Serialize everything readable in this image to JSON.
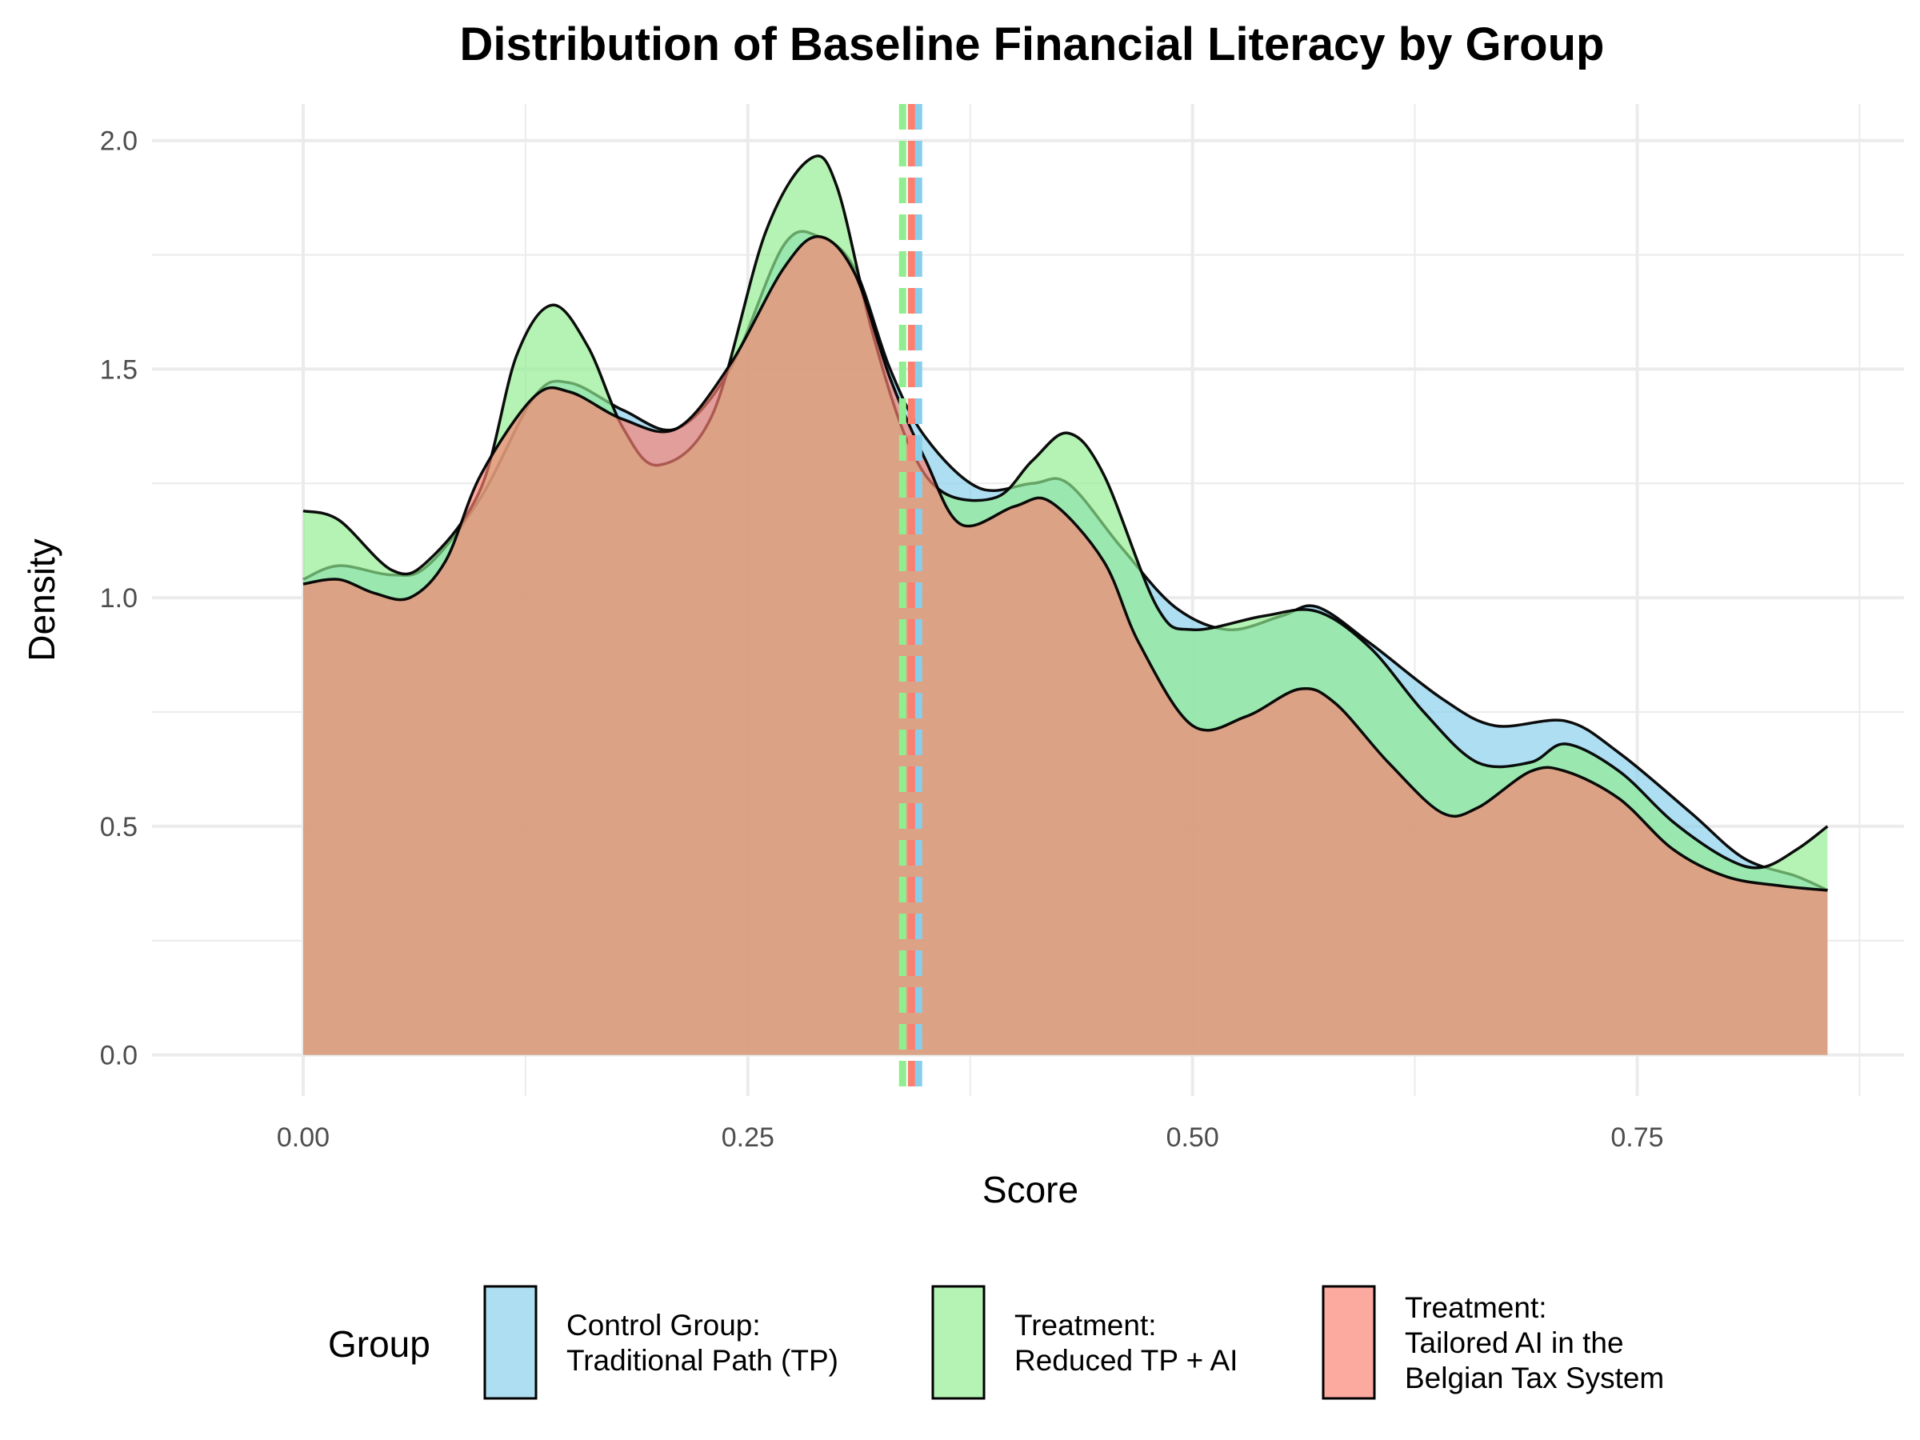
{
  "chart_data": {
    "type": "area",
    "title": "Distribution of Baseline Financial Literacy by Group",
    "xlabel": "Score",
    "ylabel": "Density",
    "xlim": [
      -0.085,
      0.9
    ],
    "ylim": [
      -0.09,
      2.08
    ],
    "x_ticks": [
      {
        "value": 0.0,
        "label": "0.00"
      },
      {
        "value": 0.25,
        "label": "0.25"
      },
      {
        "value": 0.5,
        "label": "0.50"
      },
      {
        "value": 0.75,
        "label": "0.75"
      }
    ],
    "y_ticks": [
      {
        "value": 0.0,
        "label": "0.0"
      },
      {
        "value": 0.5,
        "label": "0.5"
      },
      {
        "value": 1.0,
        "label": "1.0"
      },
      {
        "value": 1.5,
        "label": "1.5"
      },
      {
        "value": 2.0,
        "label": "2.0"
      }
    ],
    "grid": true,
    "legend": {
      "title": "Group",
      "placement": "bottom"
    },
    "series": [
      {
        "name": "Control Group: Traditional Path (TP)",
        "label_lines": [
          "Control Group:",
          "Traditional Path (TP)"
        ],
        "color": "#87CEEB",
        "mean": 0.346,
        "points": [
          [
            0.0,
            1.04
          ],
          [
            0.02,
            1.07
          ],
          [
            0.05,
            1.05
          ],
          [
            0.07,
            1.07
          ],
          [
            0.1,
            1.22
          ],
          [
            0.13,
            1.44
          ],
          [
            0.15,
            1.47
          ],
          [
            0.18,
            1.41
          ],
          [
            0.21,
            1.37
          ],
          [
            0.24,
            1.5
          ],
          [
            0.27,
            1.77
          ],
          [
            0.29,
            1.79
          ],
          [
            0.31,
            1.72
          ],
          [
            0.33,
            1.5
          ],
          [
            0.35,
            1.35
          ],
          [
            0.38,
            1.24
          ],
          [
            0.41,
            1.25
          ],
          [
            0.43,
            1.25
          ],
          [
            0.46,
            1.11
          ],
          [
            0.49,
            0.98
          ],
          [
            0.52,
            0.93
          ],
          [
            0.55,
            0.96
          ],
          [
            0.57,
            0.98
          ],
          [
            0.6,
            0.9
          ],
          [
            0.64,
            0.78
          ],
          [
            0.67,
            0.72
          ],
          [
            0.71,
            0.73
          ],
          [
            0.74,
            0.66
          ],
          [
            0.78,
            0.53
          ],
          [
            0.81,
            0.43
          ],
          [
            0.84,
            0.39
          ],
          [
            0.857,
            0.36
          ]
        ]
      },
      {
        "name": "Treatment: Reduced TP + AI",
        "label_lines": [
          "Treatment:",
          "Reduced TP + AI"
        ],
        "color": "#90EE90",
        "mean": 0.337,
        "points": [
          [
            0.0,
            1.19
          ],
          [
            0.02,
            1.17
          ],
          [
            0.05,
            1.06
          ],
          [
            0.07,
            1.08
          ],
          [
            0.1,
            1.24
          ],
          [
            0.12,
            1.53
          ],
          [
            0.14,
            1.64
          ],
          [
            0.16,
            1.55
          ],
          [
            0.18,
            1.37
          ],
          [
            0.2,
            1.29
          ],
          [
            0.23,
            1.4
          ],
          [
            0.26,
            1.8
          ],
          [
            0.285,
            1.96
          ],
          [
            0.3,
            1.9
          ],
          [
            0.32,
            1.58
          ],
          [
            0.34,
            1.34
          ],
          [
            0.36,
            1.23
          ],
          [
            0.39,
            1.22
          ],
          [
            0.41,
            1.3
          ],
          [
            0.43,
            1.36
          ],
          [
            0.45,
            1.27
          ],
          [
            0.48,
            0.98
          ],
          [
            0.5,
            0.93
          ],
          [
            0.54,
            0.96
          ],
          [
            0.57,
            0.97
          ],
          [
            0.6,
            0.89
          ],
          [
            0.63,
            0.75
          ],
          [
            0.66,
            0.64
          ],
          [
            0.69,
            0.64
          ],
          [
            0.71,
            0.68
          ],
          [
            0.74,
            0.62
          ],
          [
            0.77,
            0.51
          ],
          [
            0.8,
            0.43
          ],
          [
            0.82,
            0.41
          ],
          [
            0.84,
            0.45
          ],
          [
            0.857,
            0.5
          ]
        ]
      },
      {
        "name": "Treatment: Tailored AI in the Belgian Tax System",
        "label_lines": [
          "Treatment:",
          "Tailored AI in the",
          "Belgian Tax System"
        ],
        "color": "#FA8072",
        "mean": 0.342,
        "points": [
          [
            0.0,
            1.03
          ],
          [
            0.02,
            1.04
          ],
          [
            0.04,
            1.01
          ],
          [
            0.06,
            1.0
          ],
          [
            0.08,
            1.08
          ],
          [
            0.1,
            1.27
          ],
          [
            0.13,
            1.44
          ],
          [
            0.15,
            1.45
          ],
          [
            0.18,
            1.39
          ],
          [
            0.21,
            1.37
          ],
          [
            0.24,
            1.51
          ],
          [
            0.27,
            1.72
          ],
          [
            0.29,
            1.79
          ],
          [
            0.31,
            1.71
          ],
          [
            0.33,
            1.48
          ],
          [
            0.35,
            1.3
          ],
          [
            0.37,
            1.16
          ],
          [
            0.4,
            1.2
          ],
          [
            0.42,
            1.21
          ],
          [
            0.45,
            1.08
          ],
          [
            0.47,
            0.9
          ],
          [
            0.5,
            0.72
          ],
          [
            0.53,
            0.74
          ],
          [
            0.56,
            0.8
          ],
          [
            0.58,
            0.77
          ],
          [
            0.61,
            0.64
          ],
          [
            0.64,
            0.53
          ],
          [
            0.66,
            0.54
          ],
          [
            0.69,
            0.62
          ],
          [
            0.71,
            0.62
          ],
          [
            0.74,
            0.56
          ],
          [
            0.77,
            0.45
          ],
          [
            0.8,
            0.39
          ],
          [
            0.83,
            0.37
          ],
          [
            0.857,
            0.36
          ]
        ]
      }
    ]
  }
}
